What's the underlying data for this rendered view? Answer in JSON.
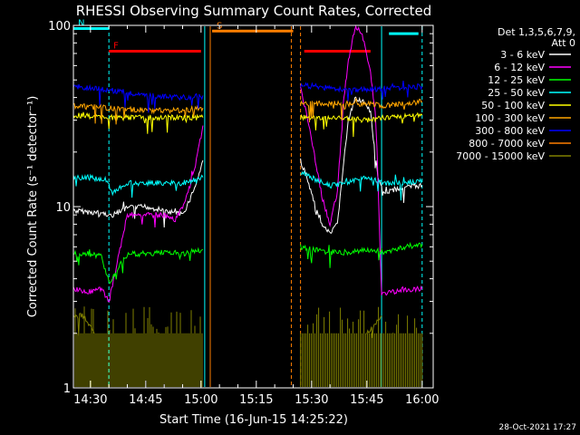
{
  "chart_data": {
    "type": "line",
    "title": "RHESSI Observing Summary Count Rates, Corrected",
    "xlabel": "Start Time (16-Jun-15 14:25:22)",
    "ylabel": "Corrected Count Rate (s⁻¹ detector⁻¹)",
    "y_scale": "log",
    "ylim": [
      1,
      100
    ],
    "xlim": [
      "14:25:22",
      "16:03:00"
    ],
    "x_ticks": [
      "14:30",
      "14:45",
      "15:00",
      "15:15",
      "15:30",
      "15:45",
      "16:00"
    ],
    "y_ticks": [
      "1",
      "10",
      "100"
    ],
    "detector_info": [
      "Det 1,3,5,6,7,9,",
      "Att 0"
    ],
    "timestamp": "28-Oct-2021 17:27",
    "flag_labels": {
      "night": "N",
      "flare": "F",
      "saa": "S"
    },
    "bars": [
      {
        "label": "N",
        "start": "14:25:22",
        "end": "14:35:00",
        "color": "#00ffff",
        "level": 96
      },
      {
        "label": "F",
        "start": "14:35:00",
        "end": "15:00:00",
        "color": "#ff0000",
        "level": 72
      },
      {
        "label": "S",
        "start": "15:03:00",
        "end": "15:25:00",
        "color": "#ff7f00",
        "level": 93
      },
      {
        "label": "",
        "start": "15:28:00",
        "end": "15:46:00",
        "color": "#ff0000",
        "level": 72
      },
      {
        "label": "",
        "start": "15:51:00",
        "end": "15:59:00",
        "color": "#00ffff",
        "level": 90
      }
    ],
    "vlines": [
      {
        "time": "14:35:00",
        "color": "#00ffff",
        "style": "dashed"
      },
      {
        "time": "15:01:00",
        "color": "#00ffff",
        "style": "solid"
      },
      {
        "time": "15:02:30",
        "color": "#ff7f00",
        "style": "solid"
      },
      {
        "time": "15:24:30",
        "color": "#ff7f00",
        "style": "dashed"
      },
      {
        "time": "15:27:00",
        "color": "#ff7f00",
        "style": "dashed"
      },
      {
        "time": "15:49:00",
        "color": "#00ffff",
        "style": "solid"
      },
      {
        "time": "16:00:00",
        "color": "#00ffff",
        "style": "dashed"
      }
    ],
    "series": [
      {
        "name": "3 - 6 keV",
        "color": "#ffffff",
        "points": [
          [
            "14:25:22",
            9.5
          ],
          [
            "14:33:00",
            9.2
          ],
          [
            "14:36:00",
            9.0
          ],
          [
            "14:40:00",
            9.8
          ],
          [
            "14:45:00",
            10.0
          ],
          [
            "14:50:00",
            9.5
          ],
          [
            "14:55:00",
            9.0
          ],
          [
            "14:57:00",
            11.0
          ],
          [
            "14:59:00",
            14.0
          ],
          [
            "15:00:30",
            18.0
          ],
          [
            "15:27:00",
            18.0
          ],
          [
            "15:29:00",
            14.0
          ],
          [
            "15:31:00",
            10.0
          ],
          [
            "15:33:00",
            8.0
          ],
          [
            "15:35:00",
            7.0
          ],
          [
            "15:37:00",
            8.0
          ],
          [
            "15:38:30",
            16.0
          ],
          [
            "15:40:00",
            30.0
          ],
          [
            "15:42:00",
            40.0
          ],
          [
            "15:44:00",
            38.0
          ],
          [
            "15:46:00",
            33.0
          ],
          [
            "15:48:00",
            14.0
          ],
          [
            "15:50:00",
            12.0
          ],
          [
            "15:53:00",
            12.5
          ],
          [
            "15:58:00",
            13.0
          ],
          [
            "16:00:00",
            13.0
          ]
        ]
      },
      {
        "name": "6 - 12 keV",
        "color": "#ff00ff",
        "points": [
          [
            "14:25:22",
            3.5
          ],
          [
            "14:30:00",
            3.4
          ],
          [
            "14:33:00",
            3.5
          ],
          [
            "14:35:00",
            3.0
          ],
          [
            "14:40:00",
            9.0
          ],
          [
            "14:45:00",
            9.0
          ],
          [
            "14:50:00",
            9.0
          ],
          [
            "14:53:00",
            8.5
          ],
          [
            "14:55:00",
            10.0
          ],
          [
            "14:57:00",
            13.0
          ],
          [
            "14:59:00",
            19.0
          ],
          [
            "15:00:30",
            28.0
          ],
          [
            "15:27:00",
            45.0
          ],
          [
            "15:29:00",
            30.0
          ],
          [
            "15:31:00",
            18.0
          ],
          [
            "15:33:00",
            11.0
          ],
          [
            "15:35:00",
            8.0
          ],
          [
            "15:37:00",
            12.0
          ],
          [
            "15:38:30",
            35.0
          ],
          [
            "15:40:00",
            65.0
          ],
          [
            "15:42:00",
            100.0
          ],
          [
            "15:44:00",
            85.0
          ],
          [
            "15:46:00",
            55.0
          ],
          [
            "15:47:30",
            30.0
          ],
          [
            "15:49:00",
            3.3
          ],
          [
            "15:55:00",
            3.5
          ],
          [
            "16:00:00",
            3.5
          ]
        ]
      },
      {
        "name": "12 - 25 keV",
        "color": "#00ff00",
        "points": [
          [
            "14:25:22",
            5.5
          ],
          [
            "14:30:00",
            5.5
          ],
          [
            "14:33:00",
            5.3
          ],
          [
            "14:35:00",
            3.8
          ],
          [
            "14:40:00",
            5.5
          ],
          [
            "14:45:00",
            5.5
          ],
          [
            "14:50:00",
            5.6
          ],
          [
            "14:55:00",
            5.5
          ],
          [
            "15:00:30",
            5.8
          ],
          [
            "15:27:00",
            6.0
          ],
          [
            "15:30:00",
            5.8
          ],
          [
            "15:35:00",
            5.6
          ],
          [
            "15:40:00",
            5.6
          ],
          [
            "15:45:00",
            5.8
          ],
          [
            "15:50:00",
            5.6
          ],
          [
            "15:55:00",
            6.0
          ],
          [
            "16:00:00",
            6.2
          ]
        ]
      },
      {
        "name": "25 - 50 keV",
        "color": "#00ffff",
        "points": [
          [
            "14:25:22",
            14.5
          ],
          [
            "14:30:00",
            14.5
          ],
          [
            "14:34:00",
            14.0
          ],
          [
            "14:36:00",
            12.0
          ],
          [
            "14:40:00",
            13.5
          ],
          [
            "14:45:00",
            13.5
          ],
          [
            "14:50:00",
            13.5
          ],
          [
            "14:55:00",
            13.5
          ],
          [
            "15:00:30",
            14.5
          ],
          [
            "15:27:00",
            15.5
          ],
          [
            "15:30:00",
            14.5
          ],
          [
            "15:35:00",
            13.0
          ],
          [
            "15:40:00",
            13.5
          ],
          [
            "15:45:00",
            14.5
          ],
          [
            "15:50:00",
            13.5
          ],
          [
            "15:55:00",
            13.5
          ],
          [
            "16:00:00",
            14.0
          ]
        ]
      },
      {
        "name": "50 - 100 keV",
        "color": "#ffff00",
        "points": [
          [
            "14:25:22",
            32.0
          ],
          [
            "14:35:00",
            31.0
          ],
          [
            "14:45:00",
            31.0
          ],
          [
            "14:55:00",
            31.0
          ],
          [
            "15:00:30",
            31.0
          ],
          [
            "15:27:00",
            31.0
          ],
          [
            "15:35:00",
            31.0
          ],
          [
            "15:45:00",
            30.0
          ],
          [
            "15:50:00",
            31.0
          ],
          [
            "16:00:00",
            32.0
          ]
        ]
      },
      {
        "name": "100 - 300 keV",
        "color": "#ffa500",
        "points": [
          [
            "14:25:22",
            36.0
          ],
          [
            "14:35:00",
            35.0
          ],
          [
            "14:45:00",
            34.0
          ],
          [
            "14:55:00",
            34.0
          ],
          [
            "15:00:30",
            35.0
          ],
          [
            "15:27:00",
            37.0
          ],
          [
            "15:35:00",
            37.0
          ],
          [
            "15:45:00",
            37.0
          ],
          [
            "15:50:00",
            36.0
          ],
          [
            "16:00:00",
            38.0
          ]
        ]
      },
      {
        "name": "300 - 800 keV",
        "color": "#0000ff",
        "points": [
          [
            "14:25:22",
            46.0
          ],
          [
            "14:35:00",
            44.0
          ],
          [
            "14:45:00",
            41.0
          ],
          [
            "14:55:00",
            40.0
          ],
          [
            "15:00:30",
            41.0
          ],
          [
            "15:27:00",
            47.0
          ],
          [
            "15:35:00",
            45.0
          ],
          [
            "15:45:00",
            44.0
          ],
          [
            "15:50:00",
            45.0
          ],
          [
            "16:00:00",
            46.0
          ]
        ]
      },
      {
        "name": "800 - 7000 keV",
        "color": "#ff7f00",
        "points": []
      },
      {
        "name": "7000 - 15000 keV",
        "color": "#808000",
        "points": [
          [
            "14:25:22",
            2.5
          ],
          [
            "14:28:00",
            2.5
          ],
          [
            "14:31:00",
            2.0
          ],
          [
            "14:45:00",
            2.0
          ],
          [
            "15:00:30",
            2.0
          ],
          [
            "15:27:00",
            2.0
          ],
          [
            "15:45:00",
            2.0
          ],
          [
            "15:49:00",
            2.5
          ],
          [
            "16:00:00",
            2.5
          ]
        ]
      }
    ]
  }
}
